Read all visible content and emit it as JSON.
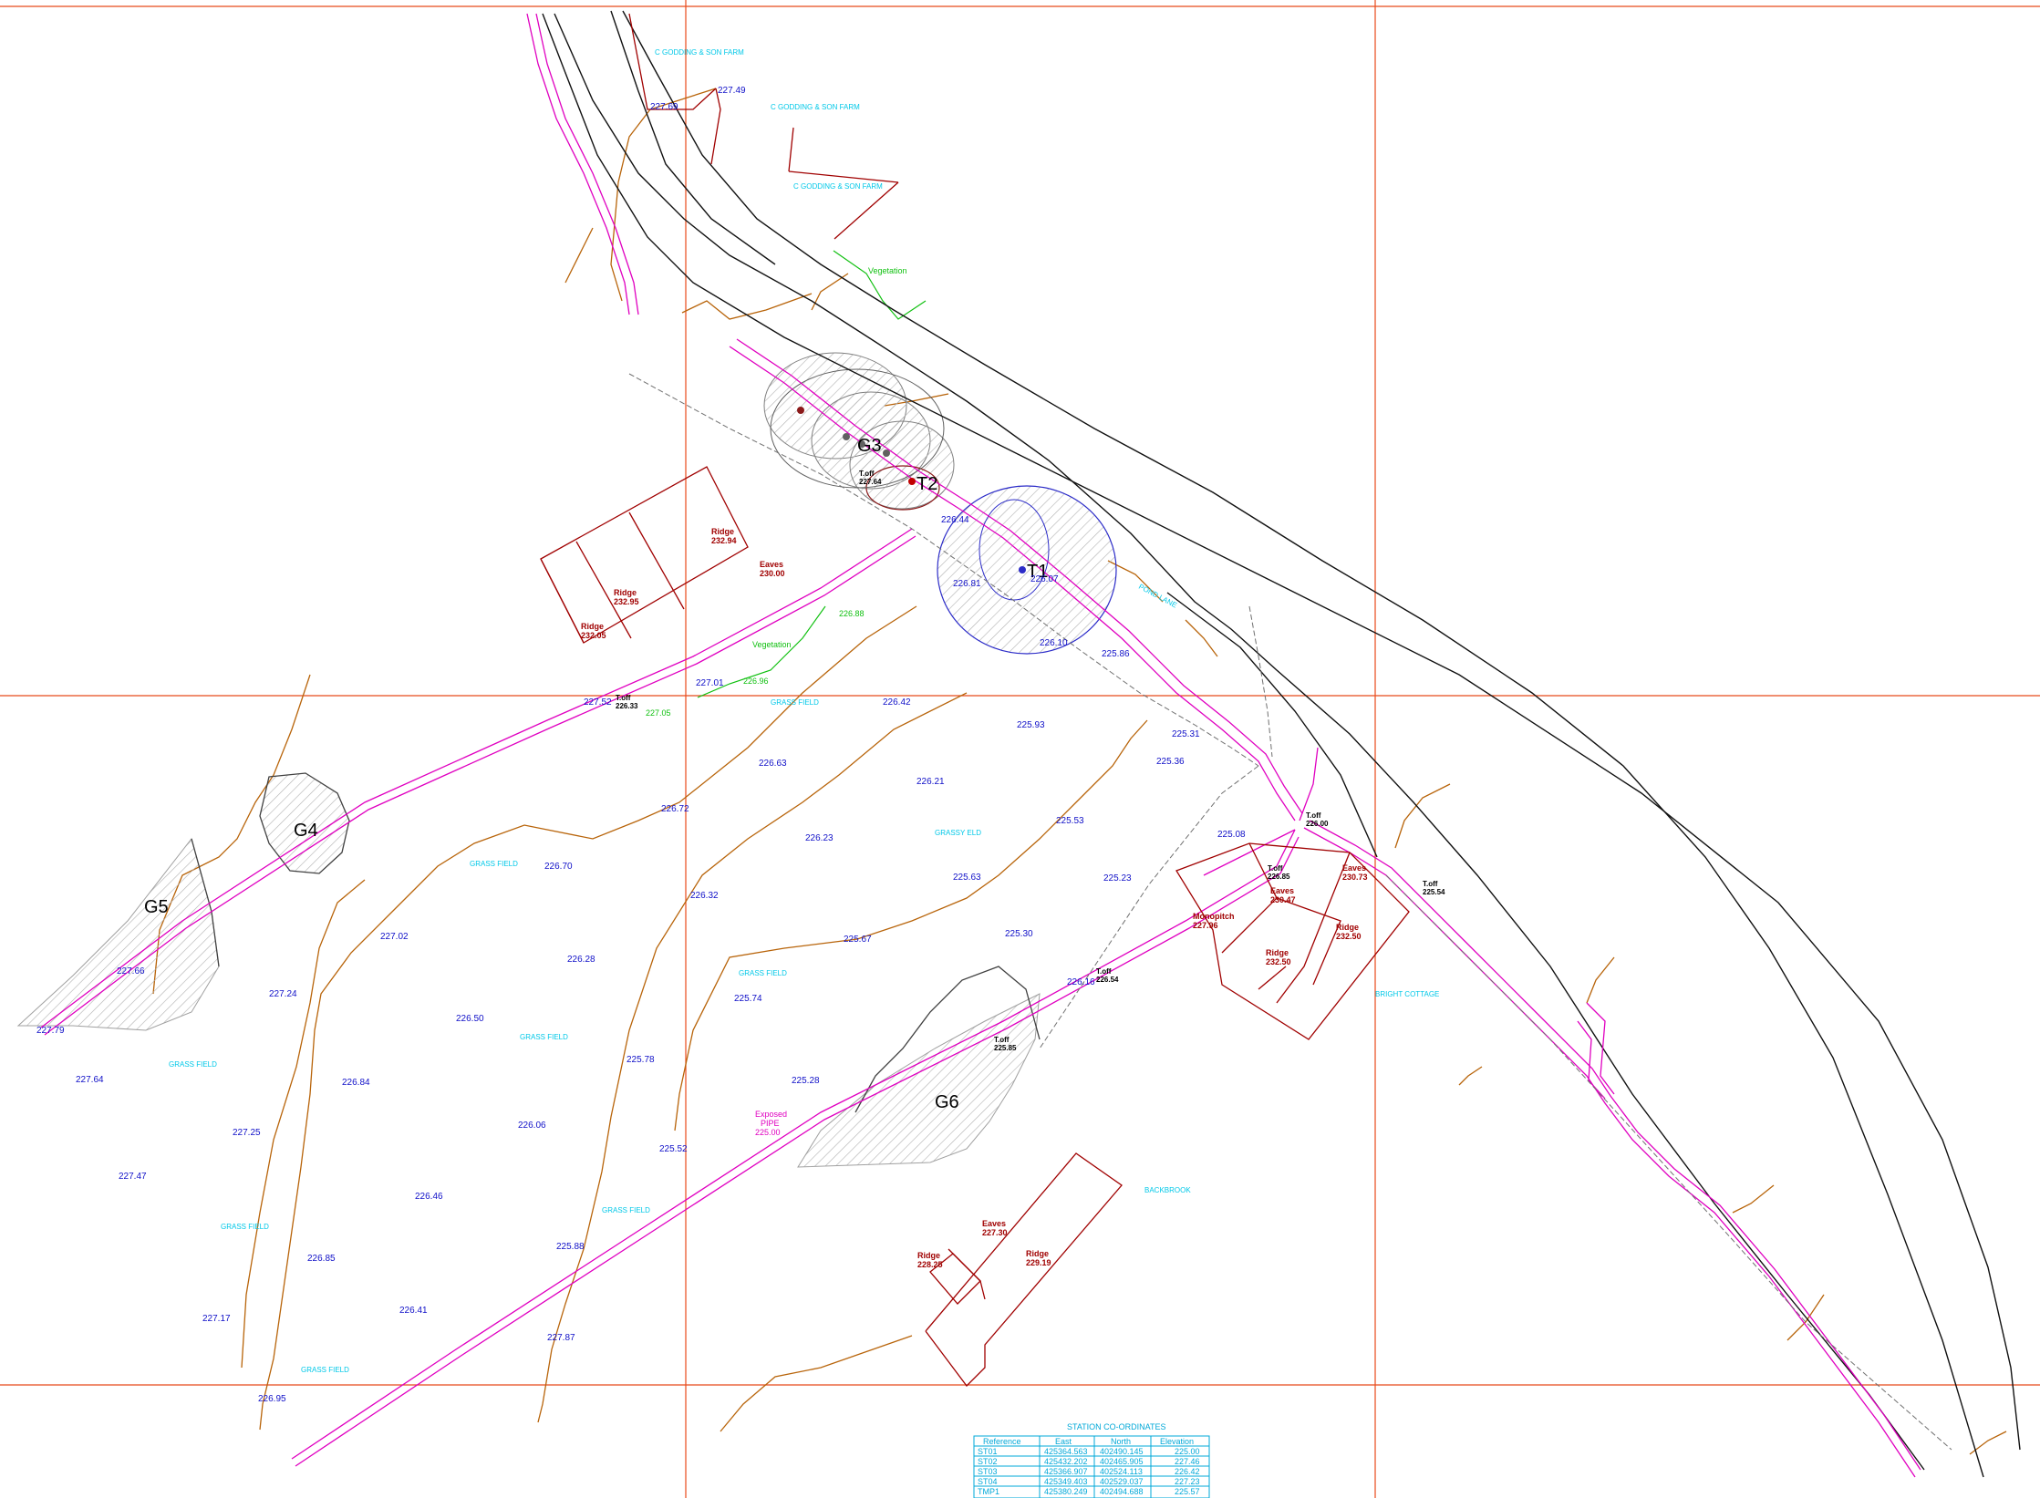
{
  "colors": {
    "grid": "#e84a1a",
    "road": "#111111",
    "pipe": "#e000c0",
    "spot": "#1010c8",
    "contour": "#b8640a",
    "building": "#a00000",
    "label": "#00c8e8",
    "vegetation": "#10c010"
  },
  "trees": [
    {
      "id": "G3",
      "label": "G3"
    },
    {
      "id": "T2",
      "label": "T2"
    },
    {
      "id": "T1",
      "label": "T1"
    },
    {
      "id": "G4",
      "label": "G4"
    },
    {
      "id": "G5",
      "label": "G5"
    },
    {
      "id": "G6",
      "label": "G6"
    }
  ],
  "area_labels": [
    {
      "text": "C GODDING & SON FARM"
    },
    {
      "text": "C GODDING & SON FARM"
    },
    {
      "text": "C GODDING & SON FARM"
    },
    {
      "text": "POND LANE"
    },
    {
      "text": "GRASS FIELD"
    },
    {
      "text": "GRASS FIELD"
    },
    {
      "text": "GRASS FIELD"
    },
    {
      "text": "GRASS FIELD"
    },
    {
      "text": "GRASS FIELD"
    },
    {
      "text": "GRASS FIELD"
    },
    {
      "text": "GRASS FIELD"
    },
    {
      "text": "GRASS FIELD"
    },
    {
      "text": "GRASSY ELD"
    },
    {
      "text": "BRIGHT COTTAGE"
    },
    {
      "text": "BACKBROOK"
    },
    {
      "text": "Vegetation"
    },
    {
      "text": "Vegetation"
    }
  ],
  "spot_levels": [
    {
      "v": "226.42"
    },
    {
      "v": "226.63"
    },
    {
      "v": "225.93"
    },
    {
      "v": "226.21"
    },
    {
      "v": "225.36"
    },
    {
      "v": "225.31"
    },
    {
      "v": "226.72"
    },
    {
      "v": "226.23"
    },
    {
      "v": "225.53"
    },
    {
      "v": "226.70"
    },
    {
      "v": "226.32"
    },
    {
      "v": "225.63"
    },
    {
      "v": "225.23"
    },
    {
      "v": "227.02"
    },
    {
      "v": "226.28"
    },
    {
      "v": "225.67"
    },
    {
      "v": "225.30"
    },
    {
      "v": "227.24"
    },
    {
      "v": "226.50"
    },
    {
      "v": "225.74"
    },
    {
      "v": "227.64"
    },
    {
      "v": "226.84"
    },
    {
      "v": "225.78"
    },
    {
      "v": "225.28"
    },
    {
      "v": "227.25"
    },
    {
      "v": "226.06"
    },
    {
      "v": "225.52"
    },
    {
      "v": "227.47"
    },
    {
      "v": "226.46"
    },
    {
      "v": "226.85"
    },
    {
      "v": "225.88"
    },
    {
      "v": "227.17"
    },
    {
      "v": "226.41"
    },
    {
      "v": "226.95"
    },
    {
      "v": "225.08"
    },
    {
      "v": "226.81"
    },
    {
      "v": "226.07"
    },
    {
      "v": "226.10"
    },
    {
      "v": "225.86"
    },
    {
      "v": "227.52"
    },
    {
      "v": "227.01"
    },
    {
      "v": "227.79"
    },
    {
      "v": "227.66"
    },
    {
      "v": "227.87"
    },
    {
      "v": "226.16"
    },
    {
      "v": "227.49"
    },
    {
      "v": "227.69"
    },
    {
      "v": "226.44"
    }
  ],
  "green_levels": [
    {
      "v": "226.88"
    },
    {
      "v": "226.96"
    },
    {
      "v": "227.05"
    }
  ],
  "building_labels": [
    {
      "name": "Ridge",
      "value": "232.94"
    },
    {
      "name": "Eaves",
      "value": "230.00"
    },
    {
      "name": "Ridge",
      "value": "232.95"
    },
    {
      "name": "Ridge",
      "value": "232.05"
    },
    {
      "name": "Eaves",
      "value": "230.73"
    },
    {
      "name": "Monopitch",
      "value": "227.96"
    },
    {
      "name": "Ridge",
      "value": "232.50"
    },
    {
      "name": "Ridge",
      "value": "232.50"
    },
    {
      "name": "Eaves",
      "value": "230.47"
    },
    {
      "name": "Eaves",
      "value": "227.30"
    },
    {
      "name": "Ridge",
      "value": "228.25"
    },
    {
      "name": "Ridge",
      "value": "229.19"
    }
  ],
  "tower_labels": [
    {
      "name": "T.off",
      "value": "227.64"
    },
    {
      "name": "T.off",
      "value": "226.00"
    },
    {
      "name": "T.off",
      "value": "225.54"
    },
    {
      "name": "T.off",
      "value": "226.54"
    },
    {
      "name": "T.off",
      "value": "225.85"
    },
    {
      "name": "T.off",
      "value": "226.85"
    },
    {
      "name": "T.off",
      "value": "226.33"
    }
  ],
  "exposed_pipe": {
    "line1": "Exposed",
    "line2": "PIPE",
    "value": "225.00"
  },
  "station_table": {
    "title": "STATION  CO-ORDINATES",
    "headers": [
      "Reference",
      "East",
      "North",
      "Elevation"
    ],
    "rows": [
      [
        "ST01",
        "425364.563",
        "402490.145",
        "225.00"
      ],
      [
        "ST02",
        "425432.202",
        "402465.905",
        "227.46"
      ],
      [
        "ST03",
        "425366.907",
        "402524.113",
        "226.42"
      ],
      [
        "ST04",
        "425349.403",
        "402529.037",
        "227.23"
      ],
      [
        "TMP1",
        "425380.249",
        "402494.688",
        "225.57"
      ]
    ]
  }
}
